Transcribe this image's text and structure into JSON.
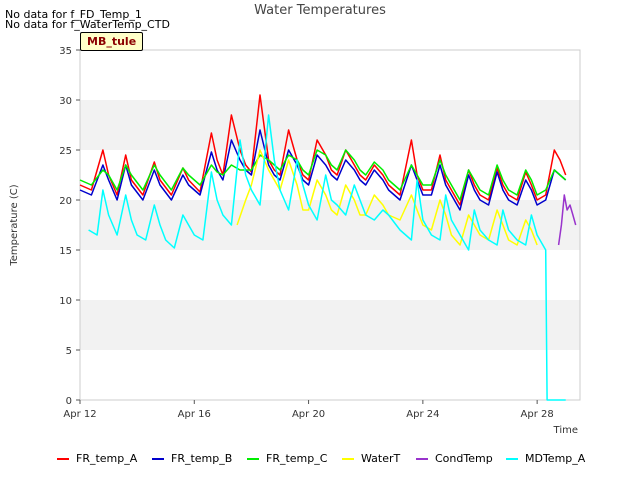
{
  "notes": [
    "No data for f_FD_Temp_1",
    "No data for f_WaterTemp_CTD"
  ],
  "site_label": "MB_tule",
  "chart_data": {
    "type": "line",
    "title": "Water Temperatures",
    "xlabel": "Time",
    "ylabel": "Temperature (C)",
    "xlim": [
      12,
      29.5
    ],
    "ylim": [
      0,
      35
    ],
    "x_ticks": [
      {
        "value": 12,
        "label": "Apr 12"
      },
      {
        "value": 16,
        "label": "Apr 16"
      },
      {
        "value": 20,
        "label": "Apr 20"
      },
      {
        "value": 24,
        "label": "Apr 24"
      },
      {
        "value": 28,
        "label": "Apr 28"
      }
    ],
    "y_ticks": [
      0,
      5,
      10,
      15,
      20,
      25,
      30,
      35
    ],
    "grid": "horizontal bands",
    "legend_position": "bottom",
    "series": [
      {
        "name": "FR_temp_A",
        "color": "#ff0000",
        "x": [
          12.0,
          12.4,
          12.8,
          13.0,
          13.3,
          13.6,
          13.8,
          14.2,
          14.6,
          14.8,
          15.2,
          15.6,
          15.8,
          16.2,
          16.6,
          16.8,
          17.0,
          17.3,
          17.6,
          17.8,
          18.0,
          18.3,
          18.6,
          18.8,
          19.0,
          19.3,
          19.6,
          19.8,
          20.0,
          20.3,
          20.6,
          20.8,
          21.0,
          21.3,
          21.6,
          21.8,
          22.0,
          22.3,
          22.6,
          22.8,
          23.2,
          23.6,
          23.8,
          24.0,
          24.3,
          24.6,
          24.8,
          25.0,
          25.3,
          25.6,
          25.8,
          26.0,
          26.3,
          26.6,
          26.8,
          27.0,
          27.3,
          27.6,
          27.8,
          28.0,
          28.3,
          28.6,
          28.8,
          29.0
        ],
        "y": [
          21.5,
          21.0,
          25.0,
          22.5,
          20.5,
          24.5,
          22.0,
          20.5,
          23.8,
          22.0,
          20.5,
          23.2,
          22.0,
          20.8,
          26.7,
          24.0,
          22.5,
          28.5,
          25.0,
          23.5,
          22.8,
          30.5,
          24.0,
          23.0,
          22.5,
          27.0,
          24.0,
          22.5,
          22.0,
          26.0,
          24.5,
          23.0,
          22.5,
          25.0,
          23.5,
          22.5,
          22.0,
          23.5,
          22.5,
          21.5,
          20.5,
          26.0,
          22.5,
          21.0,
          21.0,
          24.5,
          22.0,
          21.0,
          19.5,
          23.0,
          21.5,
          20.5,
          20.0,
          23.2,
          21.5,
          20.5,
          20.0,
          22.8,
          21.5,
          20.0,
          20.5,
          25.0,
          24.0,
          22.5
        ]
      },
      {
        "name": "FR_temp_B",
        "color": "#0000cc",
        "x": [
          12.0,
          12.4,
          12.8,
          13.0,
          13.3,
          13.6,
          13.8,
          14.2,
          14.6,
          14.8,
          15.2,
          15.6,
          15.8,
          16.2,
          16.6,
          16.8,
          17.0,
          17.3,
          17.6,
          17.8,
          18.0,
          18.3,
          18.6,
          18.8,
          19.0,
          19.3,
          19.6,
          19.8,
          20.0,
          20.3,
          20.6,
          20.8,
          21.0,
          21.3,
          21.6,
          21.8,
          22.0,
          22.3,
          22.6,
          22.8,
          23.2,
          23.6,
          23.8,
          24.0,
          24.3,
          24.6,
          24.8,
          25.0,
          25.3,
          25.6,
          25.8,
          26.0,
          26.3,
          26.6,
          26.8,
          27.0,
          27.3,
          27.6,
          27.8,
          28.0,
          28.3,
          28.6,
          28.8,
          29.0
        ],
        "y": [
          21.0,
          20.5,
          23.5,
          22.0,
          20.0,
          23.5,
          21.5,
          20.0,
          23.0,
          21.5,
          20.0,
          22.5,
          21.5,
          20.5,
          24.8,
          23.0,
          22.0,
          26.0,
          24.0,
          23.0,
          22.5,
          27.0,
          23.5,
          22.5,
          22.0,
          25.0,
          23.5,
          22.0,
          21.5,
          24.5,
          23.5,
          22.5,
          22.0,
          24.0,
          23.0,
          22.0,
          21.5,
          23.0,
          22.0,
          21.0,
          20.0,
          23.5,
          22.0,
          20.5,
          20.5,
          23.5,
          21.5,
          20.5,
          19.0,
          22.5,
          21.0,
          20.0,
          19.5,
          22.8,
          21.0,
          20.0,
          19.5,
          22.0,
          21.0,
          19.5,
          20.0,
          23.0,
          22.5,
          22.0
        ]
      },
      {
        "name": "FR_temp_C",
        "color": "#00ee00",
        "x": [
          12.0,
          12.4,
          12.8,
          13.0,
          13.3,
          13.6,
          13.8,
          14.2,
          14.6,
          14.8,
          15.2,
          15.6,
          15.8,
          16.2,
          16.6,
          16.8,
          17.0,
          17.3,
          17.6,
          17.8,
          18.0,
          18.3,
          18.6,
          18.8,
          19.0,
          19.3,
          19.6,
          19.8,
          20.0,
          20.3,
          20.6,
          20.8,
          21.0,
          21.3,
          21.6,
          21.8,
          22.0,
          22.3,
          22.6,
          22.8,
          23.2,
          23.6,
          23.8,
          24.0,
          24.3,
          24.6,
          24.8,
          25.0,
          25.3,
          25.6,
          25.8,
          26.0,
          26.3,
          26.6,
          26.8,
          27.0,
          27.3,
          27.6,
          27.8,
          28.0,
          28.3,
          28.6,
          28.8,
          29.0
        ],
        "y": [
          22.0,
          21.5,
          23.0,
          22.5,
          21.0,
          23.5,
          22.5,
          21.0,
          23.5,
          22.5,
          21.0,
          23.2,
          22.5,
          21.5,
          23.5,
          22.8,
          22.5,
          23.5,
          23.0,
          23.0,
          23.0,
          24.5,
          24.0,
          23.5,
          23.0,
          24.5,
          24.0,
          23.0,
          22.5,
          25.0,
          24.5,
          23.5,
          23.0,
          25.0,
          24.0,
          23.0,
          22.5,
          23.8,
          23.0,
          22.0,
          21.0,
          23.5,
          22.5,
          21.5,
          21.5,
          24.0,
          22.5,
          21.5,
          20.0,
          23.0,
          22.0,
          21.0,
          20.5,
          23.5,
          22.0,
          21.0,
          20.5,
          23.0,
          22.0,
          20.5,
          21.0,
          23.0,
          22.5,
          22.0
        ]
      },
      {
        "name": "WaterT",
        "color": "#ffff00",
        "x": [
          17.5,
          17.8,
          18.0,
          18.3,
          18.6,
          18.8,
          19.0,
          19.3,
          19.6,
          19.8,
          20.0,
          20.3,
          20.6,
          20.8,
          21.0,
          21.3,
          21.6,
          21.8,
          22.0,
          22.3,
          22.6,
          22.8,
          23.2,
          23.6,
          23.8,
          24.0,
          24.3,
          24.6,
          24.8,
          25.0,
          25.3,
          25.6,
          25.8,
          26.0,
          26.3,
          26.6,
          26.8,
          27.0,
          27.3,
          27.6,
          27.8,
          28.0
        ],
        "y": [
          17.5,
          20.0,
          21.5,
          25.0,
          23.0,
          22.0,
          21.0,
          24.0,
          21.5,
          19.0,
          19.0,
          22.0,
          20.5,
          19.0,
          18.5,
          21.5,
          20.0,
          18.5,
          18.5,
          20.5,
          19.5,
          18.5,
          18.0,
          20.5,
          19.0,
          17.5,
          17.0,
          20.0,
          18.5,
          16.5,
          15.5,
          18.5,
          17.5,
          16.5,
          16.0,
          19.0,
          17.5,
          16.0,
          15.5,
          18.0,
          17.0,
          15.5
        ]
      },
      {
        "name": "CondTemp",
        "color": "#9933cc",
        "x": [
          28.75,
          28.85,
          28.95,
          29.05,
          29.15,
          29.25,
          29.35
        ],
        "y": [
          15.5,
          17.5,
          20.5,
          19.0,
          19.5,
          18.5,
          17.5
        ]
      },
      {
        "name": "MDTemp_A",
        "color": "#00ffff",
        "x": [
          12.3,
          12.6,
          12.8,
          13.0,
          13.3,
          13.6,
          13.8,
          14.0,
          14.3,
          14.6,
          14.8,
          15.0,
          15.3,
          15.6,
          15.8,
          16.0,
          16.3,
          16.6,
          16.8,
          17.0,
          17.3,
          17.6,
          17.8,
          18.0,
          18.3,
          18.6,
          18.8,
          19.0,
          19.3,
          19.6,
          19.8,
          20.0,
          20.3,
          20.6,
          20.8,
          21.0,
          21.3,
          21.6,
          21.8,
          22.0,
          22.3,
          22.6,
          22.8,
          23.2,
          23.6,
          23.8,
          24.0,
          24.3,
          24.6,
          24.8,
          25.0,
          25.3,
          25.6,
          25.8,
          26.0,
          26.3,
          26.6,
          26.8,
          27.0,
          27.3,
          27.6,
          27.8,
          28.0,
          28.3,
          28.35,
          29.0
        ],
        "y": [
          17.0,
          16.5,
          21.0,
          18.5,
          16.5,
          20.5,
          18.0,
          16.5,
          16.0,
          19.5,
          17.5,
          16.0,
          15.2,
          18.5,
          17.5,
          16.5,
          16.0,
          22.8,
          20.0,
          18.5,
          17.5,
          26.0,
          22.5,
          21.0,
          19.5,
          28.5,
          24.0,
          21.0,
          19.0,
          24.0,
          21.5,
          19.5,
          18.0,
          22.5,
          20.0,
          19.5,
          18.5,
          21.5,
          20.0,
          18.5,
          18.0,
          19.0,
          18.5,
          17.0,
          16.0,
          22.0,
          18.0,
          16.5,
          16.0,
          20.5,
          18.0,
          16.5,
          15.0,
          19.0,
          17.0,
          16.0,
          15.5,
          19.0,
          17.0,
          16.0,
          15.5,
          18.5,
          16.5,
          15.0,
          0.0,
          0.0
        ]
      }
    ]
  }
}
